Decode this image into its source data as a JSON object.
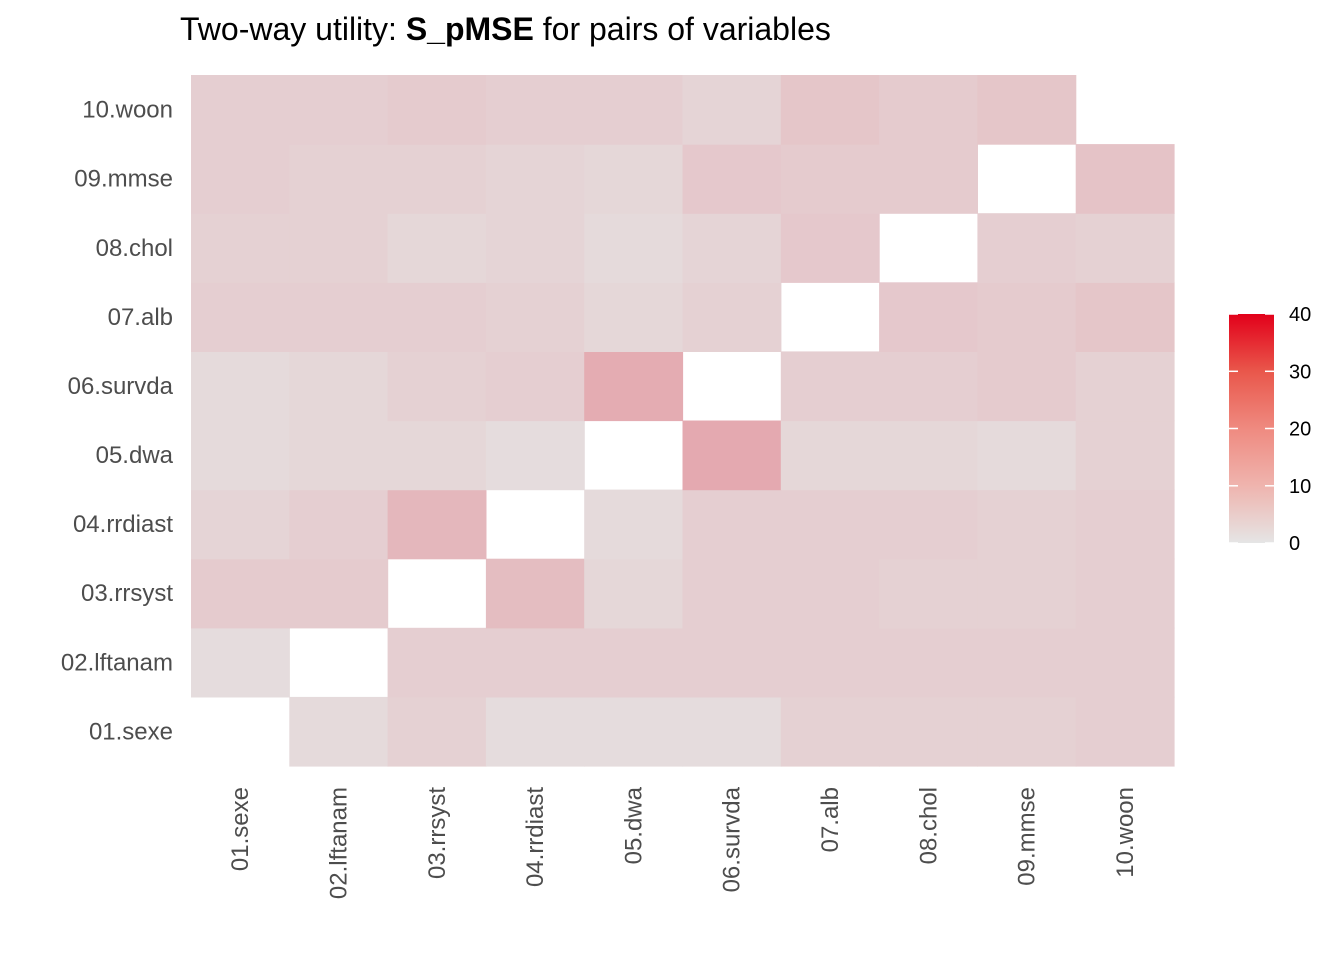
{
  "chart_data": {
    "type": "heatmap",
    "title": {
      "prefix": "Two-way utility: ",
      "bold": "S_pMSE",
      "suffix": " for pairs of variables"
    },
    "variables": [
      "01.sexe",
      "02.lftanam",
      "03.rrsyst",
      "04.rrdiast",
      "05.dwa",
      "06.survda",
      "07.alb",
      "08.chol",
      "09.mmse",
      "10.woon"
    ],
    "x_categories": [
      "01.sexe",
      "02.lftanam",
      "03.rrsyst",
      "04.rrdiast",
      "05.dwa",
      "06.survda",
      "07.alb",
      "08.chol",
      "09.mmse",
      "10.woon"
    ],
    "y_categories": [
      "01.sexe",
      "02.lftanam",
      "03.rrsyst",
      "04.rrdiast",
      "05.dwa",
      "06.survda",
      "07.alb",
      "08.chol",
      "09.mmse",
      "10.woon"
    ],
    "values": [
      [
        null,
        2.0,
        3.5,
        1.5,
        1.5,
        1.5,
        3.5,
        3.5,
        3.5,
        4.0
      ],
      [
        1.5,
        null,
        4.0,
        4.0,
        4.0,
        4.0,
        4.0,
        4.0,
        4.0,
        4.0
      ],
      [
        4.5,
        4.5,
        null,
        7.0,
        2.5,
        4.0,
        4.0,
        3.5,
        3.5,
        4.0
      ],
      [
        3.0,
        4.0,
        8.0,
        null,
        2.0,
        4.0,
        4.0,
        4.0,
        3.5,
        4.0
      ],
      [
        2.0,
        2.5,
        2.5,
        1.5,
        null,
        10.5,
        2.5,
        2.5,
        2.0,
        3.5
      ],
      [
        2.0,
        2.5,
        3.5,
        4.0,
        10.0,
        null,
        4.0,
        4.0,
        4.5,
        3.5
      ],
      [
        4.0,
        4.0,
        4.0,
        3.5,
        2.5,
        3.5,
        null,
        5.0,
        4.5,
        5.5
      ],
      [
        3.5,
        3.5,
        2.5,
        3.0,
        2.0,
        3.0,
        5.0,
        null,
        4.0,
        3.5
      ],
      [
        4.0,
        3.5,
        3.5,
        3.0,
        2.5,
        5.0,
        4.5,
        4.5,
        null,
        6.0
      ],
      [
        4.0,
        4.0,
        4.5,
        4.0,
        4.0,
        3.0,
        5.5,
        4.5,
        5.5,
        null
      ]
    ],
    "colorbar": {
      "min": 0,
      "max": 40,
      "ticks": [
        0,
        10,
        20,
        30,
        40
      ],
      "tick_labels": [
        "0",
        "10",
        "20",
        "30",
        "40"
      ],
      "low_color": "#e5e5e5",
      "high_color": "#e2001a"
    },
    "grid": false,
    "legend_position": "right"
  }
}
